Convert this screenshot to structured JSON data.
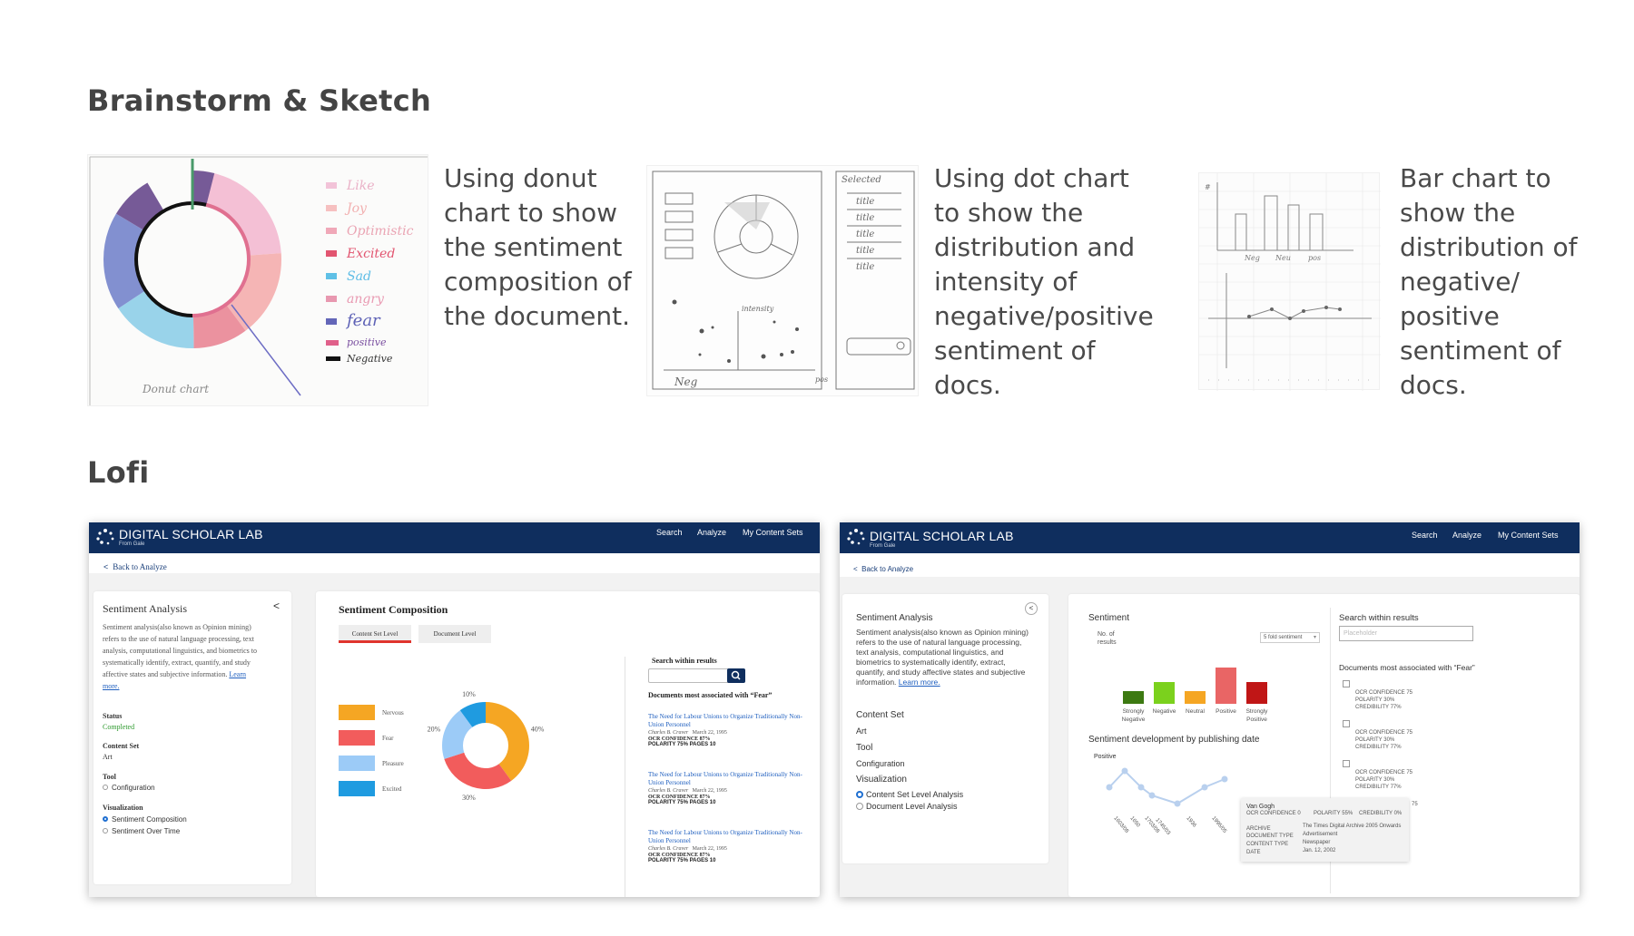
{
  "sections": {
    "brainstorm_title": "Brainstorm & Sketch",
    "lofi_title": "Lofi"
  },
  "sketches": [
    {
      "caption": "Using donut chart to show the sentiment composition of the document."
    },
    {
      "caption": "Using dot chart to show the distribution and intensity of negative/positive sentiment of docs."
    },
    {
      "caption": "Bar chart to show the distribution of negative/ positive sentiment of docs."
    }
  ],
  "sketch_text": {
    "donut_legend": [
      "Like",
      "Joy",
      "Optimistic",
      "Excited",
      "Sad",
      "angry",
      "fear",
      "positive",
      "Negative"
    ],
    "donut_caption": "Donut chart",
    "dot_list": [
      "Selected",
      "title",
      "title",
      "title",
      "title",
      "title"
    ],
    "dot_axis": [
      "Neg",
      "intensity",
      "pos"
    ],
    "bar_axis": [
      "#",
      "Neg",
      "Neu",
      "pos"
    ]
  },
  "colors": {
    "navy": "#0f2e5e",
    "orange": "#f5a623",
    "red": "#f25c5c",
    "light_blue": "#9ccbf7",
    "blue": "#1f9be0",
    "dark_green": "#3d7a12",
    "green": "#7bd11d",
    "pink": "#e96565",
    "dark_red": "#c01616"
  },
  "lofi1": {
    "brand": "DIGITAL SCHOLAR LAB",
    "brand_sub": "From Gale",
    "nav": [
      "Search",
      "Analyze",
      "My Content Sets"
    ],
    "back": "Back to Analyze",
    "side_title": "Sentiment Analysis",
    "side_desc": "Sentiment analysis(also known as Opinion mining) refers to the use of natural language processing, text analysis, computational linguistics, and biometrics to systematically identify, extract, quantify, and study affective states and subjective information.",
    "learn_more": "Learn more.",
    "status_label": "Status",
    "status_value": "Completed",
    "content_set_label": "Content Set",
    "content_set_value": "Art",
    "tool_label": "Tool",
    "tool_value": "Configuration",
    "viz_label": "Visualization",
    "viz_options": [
      "Sentiment Composition",
      "Sentiment Over Time"
    ],
    "main_title": "Sentiment Composition",
    "tabs": [
      "Content Set Level",
      "Document Level"
    ],
    "legend": [
      "Nervous",
      "Fear",
      "Pleasure",
      "Excited"
    ],
    "search_label": "Search within results",
    "docs_title": "Documents most associated with “Fear”",
    "docs": [
      {
        "title": "The Need for Labour Unions to Organize Traditionally Non-Union Personnel",
        "author": "Charles B. Craver",
        "date": "March 22, 1995",
        "ocr": "OCR CONFIDENCE 87%",
        "polarity": "POLARITY 75%  PAGES 10"
      },
      {
        "title": "The Need for Labour Unions to Organize Traditionally Non-Union Personnel",
        "author": "Charles B. Craver",
        "date": "March 22, 1995",
        "ocr": "OCR CONFIDENCE 87%",
        "polarity": "POLARITY 75%  PAGES 10"
      },
      {
        "title": "The Need for Labour Unions to Organize Traditionally Non-Union Personnel",
        "author": "Charles B. Craver",
        "date": "March 22, 1995",
        "ocr": "OCR CONFIDENCE 87%",
        "polarity": "POLARITY 75%  PAGES 10"
      }
    ]
  },
  "lofi2": {
    "brand": "DIGITAL SCHOLAR LAB",
    "brand_sub": "From Gale",
    "nav": [
      "Search",
      "Analyze",
      "My Content Sets"
    ],
    "back": "Back to Analyze",
    "side_title": "Sentiment Analysis",
    "side_desc": "Sentiment analysis(also known as Opinion mining) refers to the use of natural language processing, text analysis, computational linguistics, and biometrics to systematically identify, extract, quantify, and study affective states and subjective information.",
    "learn_more": "Learn more.",
    "content_set_label": "Content Set",
    "content_set_value": "Art",
    "tool_label": "Tool",
    "tool_value": "Configuration",
    "viz_label": "Visualization",
    "viz_options": [
      "Content Set Level Analysis",
      "Document Level Analysis"
    ],
    "sentiment_title": "Sentiment",
    "y_label": "No. of results",
    "select_value": "5 fold sentiment",
    "dev_title": "Sentiment development by publishing date",
    "dev_y": "Positive",
    "search_label": "Search within results",
    "search_placeholder": "Placeholder",
    "docs_title": "Documents most associated with “Fear”",
    "doc_meta": [
      "OCR CONFIDENCE  75",
      "POLARITY  30%",
      "CREDIBILITY 77%"
    ],
    "doc_tail": "75",
    "tooltip": {
      "title": "Van Gogh",
      "ocr": "OCR CONFIDENCE 0",
      "polarity": "POLARITY 55%",
      "credibility": "CREDIBILITY 0%",
      "archive_label": "ARCHIVE",
      "archive_value": "The Times Digital Archive 2005 Onwards",
      "doctype_label": "DOCUMENT TYPE",
      "doctype_value": "Advertisement",
      "contenttype_label": "CONTENT TYPE",
      "contenttype_value": "Newspaper",
      "date_label": "DATE",
      "date_value": "Jan. 12, 2002"
    }
  },
  "chart_data": [
    {
      "type": "pie",
      "title": "",
      "categories": [
        "Nervous",
        "Fear",
        "Pleasure",
        "Excited"
      ],
      "values": [
        40,
        30,
        20,
        10
      ],
      "value_labels": [
        "40%",
        "30%",
        "20%",
        "10%"
      ],
      "colors": [
        "#f5a623",
        "#f25c5c",
        "#9ccbf7",
        "#1f9be0"
      ]
    },
    {
      "type": "bar",
      "title": "Sentiment",
      "categories": [
        "Strongly Negative",
        "Negative",
        "Neutral",
        "Positive",
        "Strongly Positive"
      ],
      "values": [
        14,
        24,
        14,
        40,
        24
      ],
      "colors": [
        "#3d7a12",
        "#7bd11d",
        "#f5a623",
        "#e96565",
        "#c01616"
      ],
      "ylabel": "No. of results"
    },
    {
      "type": "line",
      "title": "Sentiment development by publishing date",
      "ylabel": "Positive",
      "x": [
        "1603/08",
        "1650",
        "1703/08",
        "1745/03",
        "1936",
        "1995/05"
      ],
      "values": [
        3,
        5,
        3,
        2,
        1,
        4
      ]
    }
  ]
}
